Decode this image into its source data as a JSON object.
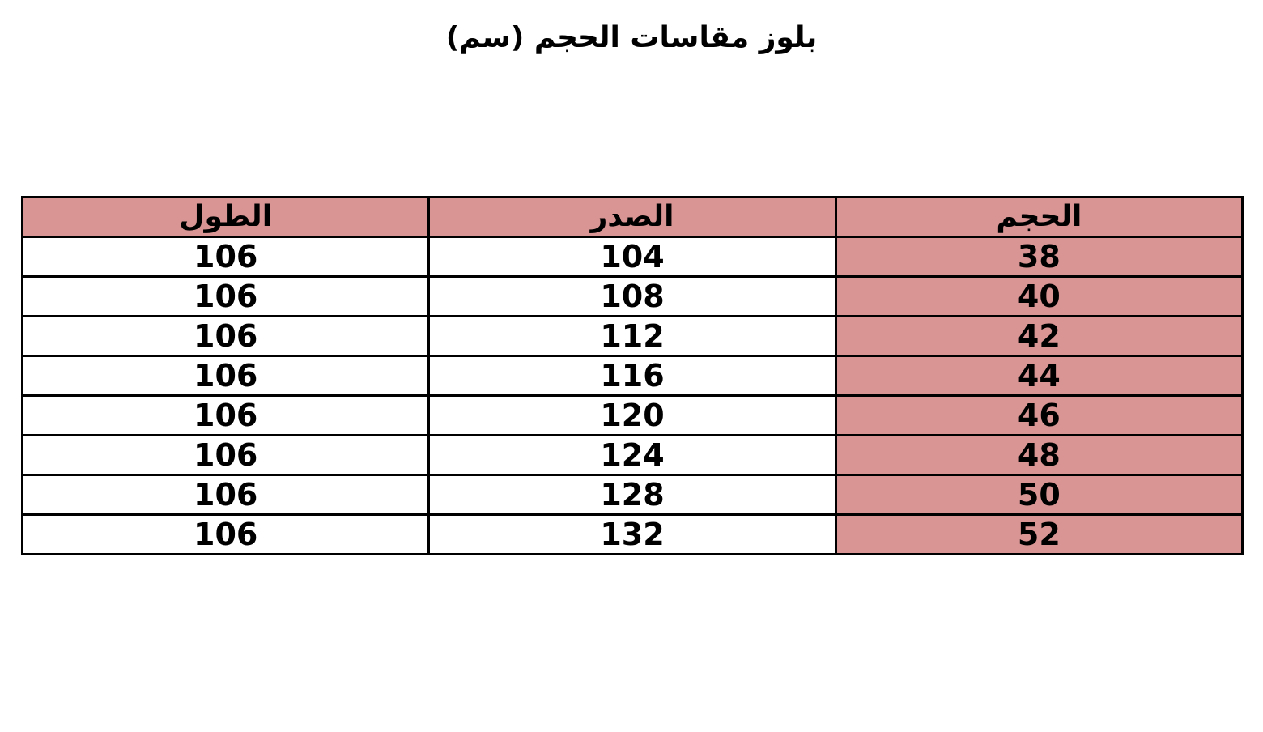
{
  "title": "بلوز مقاسات الحجم (سم)",
  "header_color": "#d99594",
  "table": {
    "headers": [
      "الحجم",
      "الصدر",
      "الطول"
    ],
    "rows": [
      [
        "38",
        "104",
        "106"
      ],
      [
        "40",
        "108",
        "106"
      ],
      [
        "42",
        "112",
        "106"
      ],
      [
        "44",
        "116",
        "106"
      ],
      [
        "46",
        "120",
        "106"
      ],
      [
        "48",
        "124",
        "106"
      ],
      [
        "50",
        "128",
        "106"
      ],
      [
        "52",
        "132",
        "106"
      ]
    ]
  }
}
